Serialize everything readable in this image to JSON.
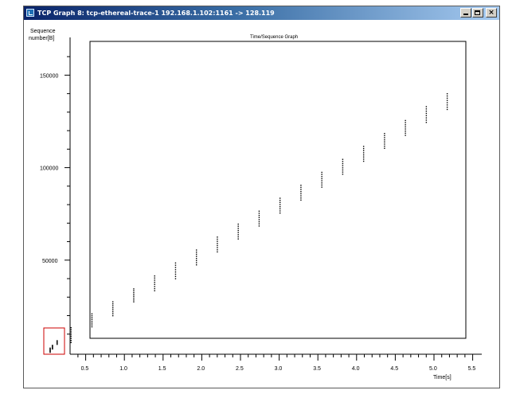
{
  "window": {
    "title": "TCP Graph 8: tcp-ethereal-trace-1 192.168.1.102:1161 -> 128.119",
    "minimize_icon": "minimize-icon",
    "maximize_icon": "maximize-icon",
    "close_icon": "close-icon",
    "close_glyph": "×"
  },
  "graph": {
    "y_axis_label_line1": "Sequence",
    "y_axis_label_line2": "number[B]",
    "x_axis_label": "Time[s]",
    "zoom_title": "Time/Sequence Graph"
  },
  "chart_data": {
    "type": "scatter",
    "title": "Time/Sequence Graph",
    "xlabel": "Time[s]",
    "ylabel": "Sequence number[B]",
    "xlim": [
      0,
      5.6
    ],
    "ylim": [
      0,
      170000
    ],
    "x_ticks": [
      "0.5",
      "1.0",
      "1.5",
      "2.0",
      "2.5",
      "3.0",
      "3.5",
      "4.0",
      "4.5",
      "5.0",
      "5.5"
    ],
    "y_ticks": [
      "50000",
      "100000",
      "150000"
    ],
    "bursts": [
      {
        "time": 0.04,
        "seq_start": 200,
        "seq_end": 2500
      },
      {
        "time": 0.07,
        "seq_start": 2000,
        "seq_end": 4000
      },
      {
        "time": 0.13,
        "seq_start": 4500,
        "seq_end": 6500
      },
      {
        "time": 0.31,
        "seq_start": 5500,
        "seq_end": 13500
      },
      {
        "time": 0.58,
        "seq_start": 14000,
        "seq_end": 21000
      },
      {
        "time": 0.85,
        "seq_start": 20000,
        "seq_end": 27500
      },
      {
        "time": 1.12,
        "seq_start": 27500,
        "seq_end": 34500
      },
      {
        "time": 1.39,
        "seq_start": 33500,
        "seq_end": 41500
      },
      {
        "time": 1.66,
        "seq_start": 40000,
        "seq_end": 48500
      },
      {
        "time": 1.93,
        "seq_start": 47500,
        "seq_end": 55500
      },
      {
        "time": 2.2,
        "seq_start": 54500,
        "seq_end": 62500
      },
      {
        "time": 2.47,
        "seq_start": 61500,
        "seq_end": 69500
      },
      {
        "time": 2.74,
        "seq_start": 68500,
        "seq_end": 76500
      },
      {
        "time": 3.01,
        "seq_start": 75500,
        "seq_end": 83500
      },
      {
        "time": 3.28,
        "seq_start": 82500,
        "seq_end": 90500
      },
      {
        "time": 3.55,
        "seq_start": 89500,
        "seq_end": 97500
      },
      {
        "time": 3.82,
        "seq_start": 96500,
        "seq_end": 104500
      },
      {
        "time": 4.09,
        "seq_start": 103500,
        "seq_end": 111500
      },
      {
        "time": 4.36,
        "seq_start": 110500,
        "seq_end": 118500
      },
      {
        "time": 4.63,
        "seq_start": 117500,
        "seq_end": 125500
      },
      {
        "time": 4.9,
        "seq_start": 124500,
        "seq_end": 133000
      },
      {
        "time": 5.17,
        "seq_start": 131500,
        "seq_end": 140000
      }
    ],
    "points_per_burst": 8,
    "grid": false,
    "legend": "none",
    "colors": {
      "points": "#000000",
      "axes": "#000000",
      "zoom_marker": "#cc0000"
    }
  }
}
